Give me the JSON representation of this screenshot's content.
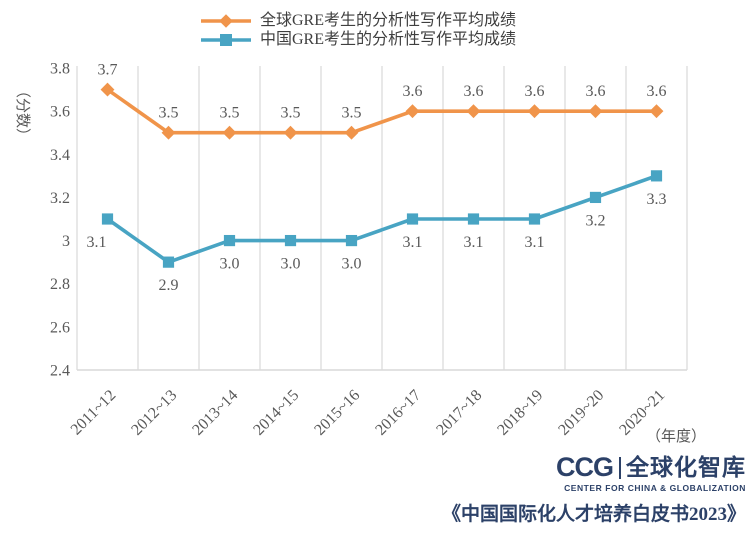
{
  "y_axis": {
    "title": "（分数）",
    "ticks": [
      {
        "label": "3.8",
        "value": 3.8
      },
      {
        "label": "3.6",
        "value": 3.6
      },
      {
        "label": "3.4",
        "value": 3.4
      },
      {
        "label": "3.2",
        "value": 3.2
      },
      {
        "label": "3",
        "value": 3.0
      },
      {
        "label": "2.8",
        "value": 2.8
      },
      {
        "label": "2.6",
        "value": 2.6
      },
      {
        "label": "2.4",
        "value": 2.4
      }
    ]
  },
  "x_axis": {
    "title": "（年度）"
  },
  "chart_data": {
    "type": "line",
    "title": "",
    "categories": [
      "2011~12",
      "2012~13",
      "2013~14",
      "2014~15",
      "2015~16",
      "2016~17",
      "2017~18",
      "2018~19",
      "2019~20",
      "2020~21"
    ],
    "series": [
      {
        "name": "全球GRE考生的分析性写作平均成绩",
        "color": "#F0944A",
        "marker": "diamond",
        "label_position": "above",
        "values": [
          3.7,
          3.5,
          3.5,
          3.5,
          3.5,
          3.6,
          3.6,
          3.6,
          3.6,
          3.6
        ],
        "labels": [
          "3.7",
          "3.5",
          "3.5",
          "3.5",
          "3.5",
          "3.6",
          "3.6",
          "3.6",
          "3.6",
          "3.6"
        ]
      },
      {
        "name": "中国GRE考生的分析性写作平均成绩",
        "color": "#48A4C3",
        "marker": "square",
        "label_position": "below",
        "values": [
          3.1,
          2.9,
          3.0,
          3.0,
          3.0,
          3.1,
          3.1,
          3.1,
          3.2,
          3.3
        ],
        "labels": [
          "3.1",
          "2.9",
          "3.0",
          "3.0",
          "3.0",
          "3.1",
          "3.1",
          "3.1",
          "3.2",
          "3.3"
        ]
      }
    ],
    "ylim": [
      2.4,
      3.8
    ],
    "ytick_step": 0.2,
    "grid": "vertical",
    "legend_position": "top"
  },
  "footer": {
    "logo_ccg": "CCG",
    "logo_cn": "全球化智库",
    "logo_tagline": "CENTER FOR CHINA & GLOBALIZATION",
    "source_title": "《中国国际化人才培养白皮书2023》"
  },
  "colors": {
    "background": "#FFFFFF",
    "grid": "#D9D9D9",
    "tick_text": "#595959",
    "legend_text": "#3F3F3F",
    "navy": "#2C4168"
  }
}
